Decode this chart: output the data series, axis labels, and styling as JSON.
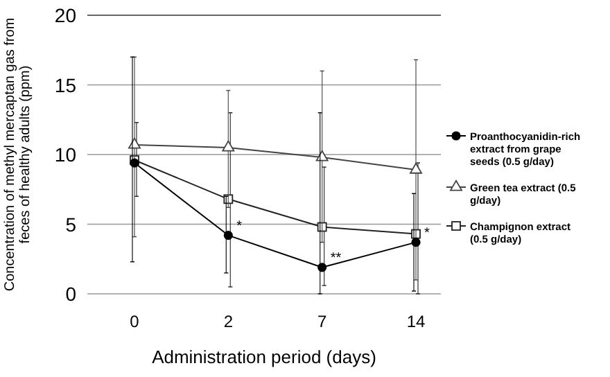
{
  "chart_data": {
    "type": "line",
    "xlabel": "Administration period (days)",
    "ylabel": "Concentration of methyl mercaptan gas from feces of healthy adults (ppm)",
    "categories": [
      "0",
      "2",
      "7",
      "14"
    ],
    "ylim": [
      0,
      20
    ],
    "yticks": [
      0,
      5,
      10,
      15,
      20
    ],
    "grid": "y",
    "legend": "right",
    "series": [
      {
        "name": "Proanthocyanidin-rich extract from grape seeds (0.5 g/day)",
        "color": "#000000",
        "marker": "circle",
        "values": [
          9.4,
          4.2,
          1.9,
          3.7
        ],
        "errors": [
          [
            2.3,
            17
          ],
          [
            1.5,
            7
          ],
          [
            0,
            13
          ],
          [
            0.2,
            7.2
          ]
        ]
      },
      {
        "name": "Green tea extract (0.5 g/day)",
        "color": "#444444",
        "marker": "triangle",
        "values": [
          10.7,
          10.5,
          9.8,
          8.9
        ],
        "errors": [
          [
            4.1,
            17
          ],
          [
            6.2,
            14.6
          ],
          [
            3.7,
            16
          ],
          [
            1,
            16.8
          ]
        ]
      },
      {
        "name": "Champignon extract (0.5 g/day)",
        "color": "#222222",
        "marker": "square",
        "values": [
          9.6,
          6.8,
          4.8,
          4.3
        ],
        "errors": [
          [
            7,
            12.3
          ],
          [
            0.5,
            13
          ],
          [
            0.6,
            9.1
          ],
          [
            0,
            9.4
          ]
        ]
      }
    ],
    "annotations": [
      {
        "text": "*",
        "x": "2",
        "y": 4.2
      },
      {
        "text": "**",
        "x": "7",
        "y": 1.9
      },
      {
        "text": "*",
        "x": "14",
        "y": 3.7
      }
    ]
  }
}
